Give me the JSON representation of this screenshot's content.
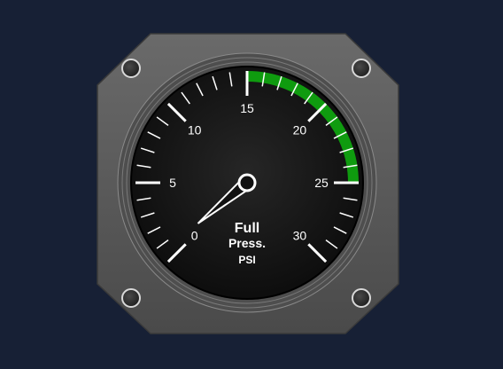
{
  "gauge": {
    "caption_line1": "Full",
    "caption_line2": "Press.",
    "caption_line3": "PSI",
    "min_value": 0,
    "max_value": 30,
    "major_labels": [
      "0",
      "5",
      "10",
      "15",
      "20",
      "25",
      "30"
    ],
    "major_values": [
      0,
      5,
      10,
      15,
      20,
      25,
      30
    ],
    "minor_step": 1,
    "green_band": [
      15,
      25
    ],
    "needle_value": 0.6,
    "colors": {
      "background": "#172035",
      "bezel": "#5c5c5c",
      "face": "#111111",
      "ticks": "#ffffff",
      "band": "#0f9b0f",
      "needle": "#ffffff"
    }
  }
}
